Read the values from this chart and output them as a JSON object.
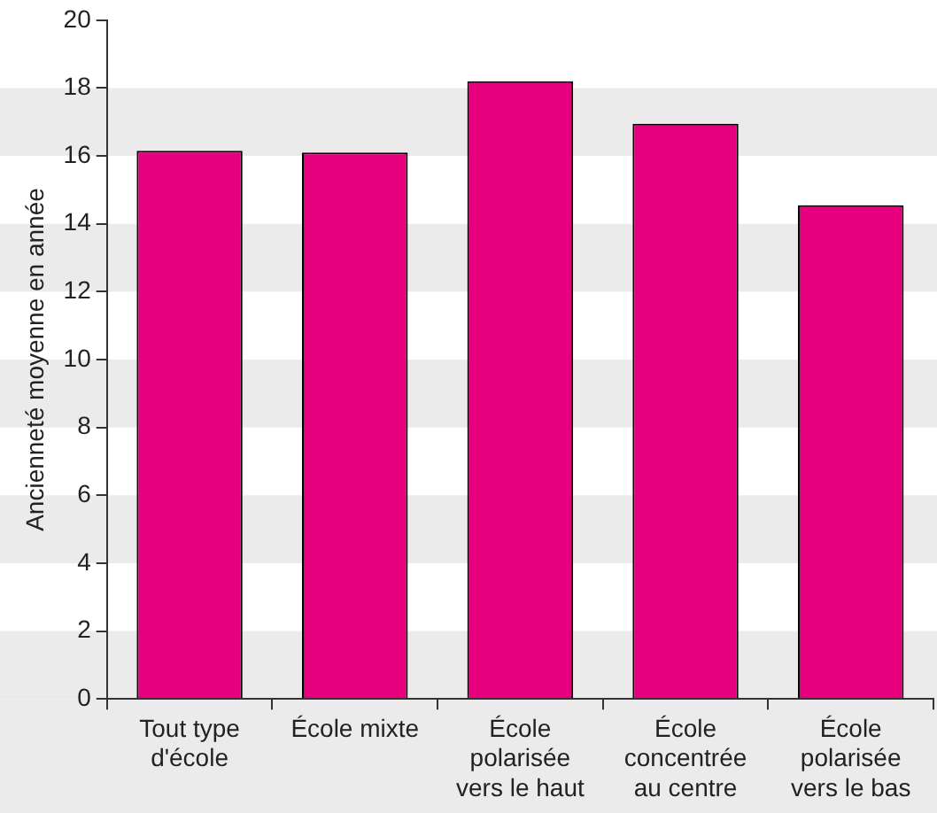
{
  "chart_data": {
    "type": "bar",
    "ylabel": "Ancienneté moyenne en année",
    "categories": [
      "Tout type d'école",
      "École mixte",
      "École polarisée vers le haut",
      "École concentrée au centre",
      "École polarisée vers le bas"
    ],
    "values": [
      16.15,
      16.1,
      18.2,
      16.95,
      14.55
    ],
    "color": "#e6007e",
    "ylim": [
      0,
      20
    ],
    "yticks": [
      0,
      2,
      4,
      6,
      8,
      10,
      12,
      14,
      16,
      18,
      20
    ],
    "legend": false
  }
}
